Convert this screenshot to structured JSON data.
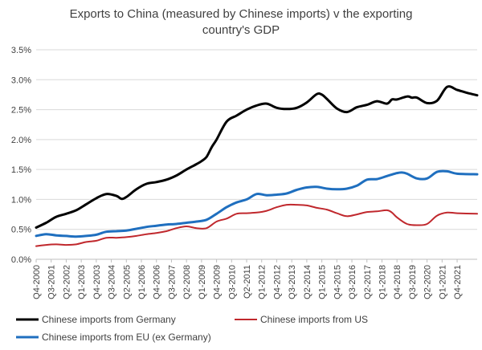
{
  "chart_data": {
    "type": "line",
    "title": "Exports to China (measured by Chinese imports) v the exporting country's GDP",
    "title_lines": [
      "Exports to China (measured by Chinese imports) v the exporting",
      "country's GDP"
    ],
    "xlabel": "",
    "ylabel": "",
    "ylim": [
      0,
      0.035
    ],
    "yticks": [
      "0.0%",
      "0.5%",
      "1.0%",
      "1.5%",
      "2.0%",
      "2.5%",
      "3.0%",
      "3.5%"
    ],
    "x_start": "Q4-2000",
    "x_end": "Q4-2022",
    "xtick_labels": [
      "Q4-2000",
      "Q3-2001",
      "Q2-2002",
      "Q1-2003",
      "Q4-2003",
      "Q3-2004",
      "Q2-2005",
      "Q1-2006",
      "Q4-2006",
      "Q3-2007",
      "Q2-2008",
      "Q1-2009",
      "Q4-2009",
      "Q3-2010",
      "Q2-2011",
      "Q1-2012",
      "Q4-2012",
      "Q3-2013",
      "Q2-2014",
      "Q1-2015",
      "Q4-2015",
      "Q3-2016",
      "Q2-2017",
      "Q1-2018",
      "Q4-2018",
      "Q3-2019",
      "Q2-2020",
      "Q1-2021",
      "Q4-2021"
    ],
    "grid": "horizontal",
    "legend_position": "bottom",
    "series": [
      {
        "name": "Chinese imports from Germany",
        "color": "#000000",
        "points": [
          [
            "Q4-2000",
            0.0053
          ],
          [
            "Q2-2001",
            0.0061
          ],
          [
            "Q4-2001",
            0.0071
          ],
          [
            "Q2-2002",
            0.0076
          ],
          [
            "Q4-2002",
            0.0082
          ],
          [
            "Q2-2003",
            0.0092
          ],
          [
            "Q4-2003",
            0.0102
          ],
          [
            "Q2-2004",
            0.0109
          ],
          [
            "Q4-2004",
            0.0106
          ],
          [
            "Q1-2005",
            0.0101
          ],
          [
            "Q2-2005",
            0.0104
          ],
          [
            "Q4-2005",
            0.0117
          ],
          [
            "Q2-2006",
            0.0126
          ],
          [
            "Q4-2006",
            0.0129
          ],
          [
            "Q2-2007",
            0.0133
          ],
          [
            "Q4-2007",
            0.014
          ],
          [
            "Q2-2008",
            0.015
          ],
          [
            "Q4-2008",
            0.0159
          ],
          [
            "Q1-2009",
            0.0164
          ],
          [
            "Q2-2009",
            0.0171
          ],
          [
            "Q3-2009",
            0.0187
          ],
          [
            "Q4-2009",
            0.02
          ],
          [
            "Q2-2010",
            0.023
          ],
          [
            "Q4-2010",
            0.024
          ],
          [
            "Q2-2011",
            0.025
          ],
          [
            "Q4-2011",
            0.0257
          ],
          [
            "Q2-2012",
            0.026
          ],
          [
            "Q4-2012",
            0.0253
          ],
          [
            "Q2-2013",
            0.0251
          ],
          [
            "Q4-2013",
            0.0253
          ],
          [
            "Q2-2014",
            0.0262
          ],
          [
            "Q4-2014",
            0.0276
          ],
          [
            "Q1-2015",
            0.0275
          ],
          [
            "Q2-2015",
            0.0268
          ],
          [
            "Q4-2015",
            0.0252
          ],
          [
            "Q2-2016",
            0.0246
          ],
          [
            "Q4-2016",
            0.0254
          ],
          [
            "Q2-2017",
            0.0258
          ],
          [
            "Q4-2017",
            0.0264
          ],
          [
            "Q2-2018",
            0.026
          ],
          [
            "Q3-2018",
            0.0267
          ],
          [
            "Q4-2018",
            0.0267
          ],
          [
            "Q2-2019",
            0.0272
          ],
          [
            "Q3-2019",
            0.027
          ],
          [
            "Q4-2019",
            0.027
          ],
          [
            "Q2-2020",
            0.0261
          ],
          [
            "Q4-2020",
            0.0265
          ],
          [
            "Q2-2021",
            0.0288
          ],
          [
            "Q4-2021",
            0.0283
          ],
          [
            "Q2-2022",
            0.0278
          ],
          [
            "Q4-2022",
            0.0274
          ]
        ]
      },
      {
        "name": "Chinese imports from US",
        "color": "#c0282d",
        "points": [
          [
            "Q4-2000",
            0.0022
          ],
          [
            "Q2-2001",
            0.0024
          ],
          [
            "Q4-2001",
            0.0025
          ],
          [
            "Q2-2002",
            0.0024
          ],
          [
            "Q4-2002",
            0.0025
          ],
          [
            "Q2-2003",
            0.0029
          ],
          [
            "Q4-2003",
            0.0031
          ],
          [
            "Q2-2004",
            0.0036
          ],
          [
            "Q4-2004",
            0.0036
          ],
          [
            "Q2-2005",
            0.0037
          ],
          [
            "Q4-2005",
            0.0039
          ],
          [
            "Q2-2006",
            0.0042
          ],
          [
            "Q4-2006",
            0.0044
          ],
          [
            "Q2-2007",
            0.0047
          ],
          [
            "Q4-2007",
            0.0052
          ],
          [
            "Q2-2008",
            0.0055
          ],
          [
            "Q4-2008",
            0.0052
          ],
          [
            "Q2-2009",
            0.0052
          ],
          [
            "Q4-2009",
            0.0063
          ],
          [
            "Q2-2010",
            0.0068
          ],
          [
            "Q4-2010",
            0.0076
          ],
          [
            "Q2-2011",
            0.0077
          ],
          [
            "Q4-2011",
            0.0078
          ],
          [
            "Q2-2012",
            0.0081
          ],
          [
            "Q4-2012",
            0.0087
          ],
          [
            "Q2-2013",
            0.0091
          ],
          [
            "Q4-2013",
            0.0091
          ],
          [
            "Q2-2014",
            0.009
          ],
          [
            "Q4-2014",
            0.0086
          ],
          [
            "Q2-2015",
            0.0083
          ],
          [
            "Q4-2015",
            0.0077
          ],
          [
            "Q2-2016",
            0.0072
          ],
          [
            "Q4-2016",
            0.0075
          ],
          [
            "Q2-2017",
            0.0079
          ],
          [
            "Q4-2017",
            0.008
          ],
          [
            "Q2-2018",
            0.0082
          ],
          [
            "Q3-2018",
            0.0078
          ],
          [
            "Q4-2018",
            0.007
          ],
          [
            "Q2-2019",
            0.0059
          ],
          [
            "Q4-2019",
            0.0057
          ],
          [
            "Q2-2020",
            0.0059
          ],
          [
            "Q4-2020",
            0.0073
          ],
          [
            "Q2-2021",
            0.0078
          ],
          [
            "Q4-2021",
            0.0077
          ],
          [
            "Q4-2022",
            0.0076
          ]
        ]
      },
      {
        "name": "Chinese imports from EU (ex Germany)",
        "color": "#1f6fbf",
        "points": [
          [
            "Q4-2000",
            0.0039
          ],
          [
            "Q2-2001",
            0.0042
          ],
          [
            "Q4-2001",
            0.004
          ],
          [
            "Q2-2002",
            0.0039
          ],
          [
            "Q4-2002",
            0.0038
          ],
          [
            "Q2-2003",
            0.0039
          ],
          [
            "Q4-2003",
            0.0041
          ],
          [
            "Q2-2004",
            0.0046
          ],
          [
            "Q4-2004",
            0.0047
          ],
          [
            "Q2-2005",
            0.0048
          ],
          [
            "Q4-2005",
            0.0051
          ],
          [
            "Q2-2006",
            0.0054
          ],
          [
            "Q4-2006",
            0.0056
          ],
          [
            "Q2-2007",
            0.0058
          ],
          [
            "Q4-2007",
            0.0059
          ],
          [
            "Q2-2008",
            0.0061
          ],
          [
            "Q4-2008",
            0.0063
          ],
          [
            "Q2-2009",
            0.0066
          ],
          [
            "Q4-2009",
            0.0076
          ],
          [
            "Q2-2010",
            0.0087
          ],
          [
            "Q4-2010",
            0.0095
          ],
          [
            "Q2-2011",
            0.01
          ],
          [
            "Q4-2011",
            0.0109
          ],
          [
            "Q2-2012",
            0.0107
          ],
          [
            "Q4-2012",
            0.0108
          ],
          [
            "Q2-2013",
            0.011
          ],
          [
            "Q4-2013",
            0.0116
          ],
          [
            "Q2-2014",
            0.012
          ],
          [
            "Q4-2014",
            0.0121
          ],
          [
            "Q2-2015",
            0.0118
          ],
          [
            "Q4-2015",
            0.0117
          ],
          [
            "Q2-2016",
            0.0118
          ],
          [
            "Q4-2016",
            0.0123
          ],
          [
            "Q2-2017",
            0.0133
          ],
          [
            "Q4-2017",
            0.0134
          ],
          [
            "Q2-2018",
            0.0139
          ],
          [
            "Q4-2018",
            0.0144
          ],
          [
            "Q1-2019",
            0.0145
          ],
          [
            "Q2-2019",
            0.0143
          ],
          [
            "Q4-2019",
            0.0135
          ],
          [
            "Q2-2020",
            0.0135
          ],
          [
            "Q4-2020",
            0.0146
          ],
          [
            "Q2-2021",
            0.0147
          ],
          [
            "Q4-2021",
            0.0143
          ],
          [
            "Q4-2022",
            0.0142
          ]
        ]
      }
    ]
  }
}
